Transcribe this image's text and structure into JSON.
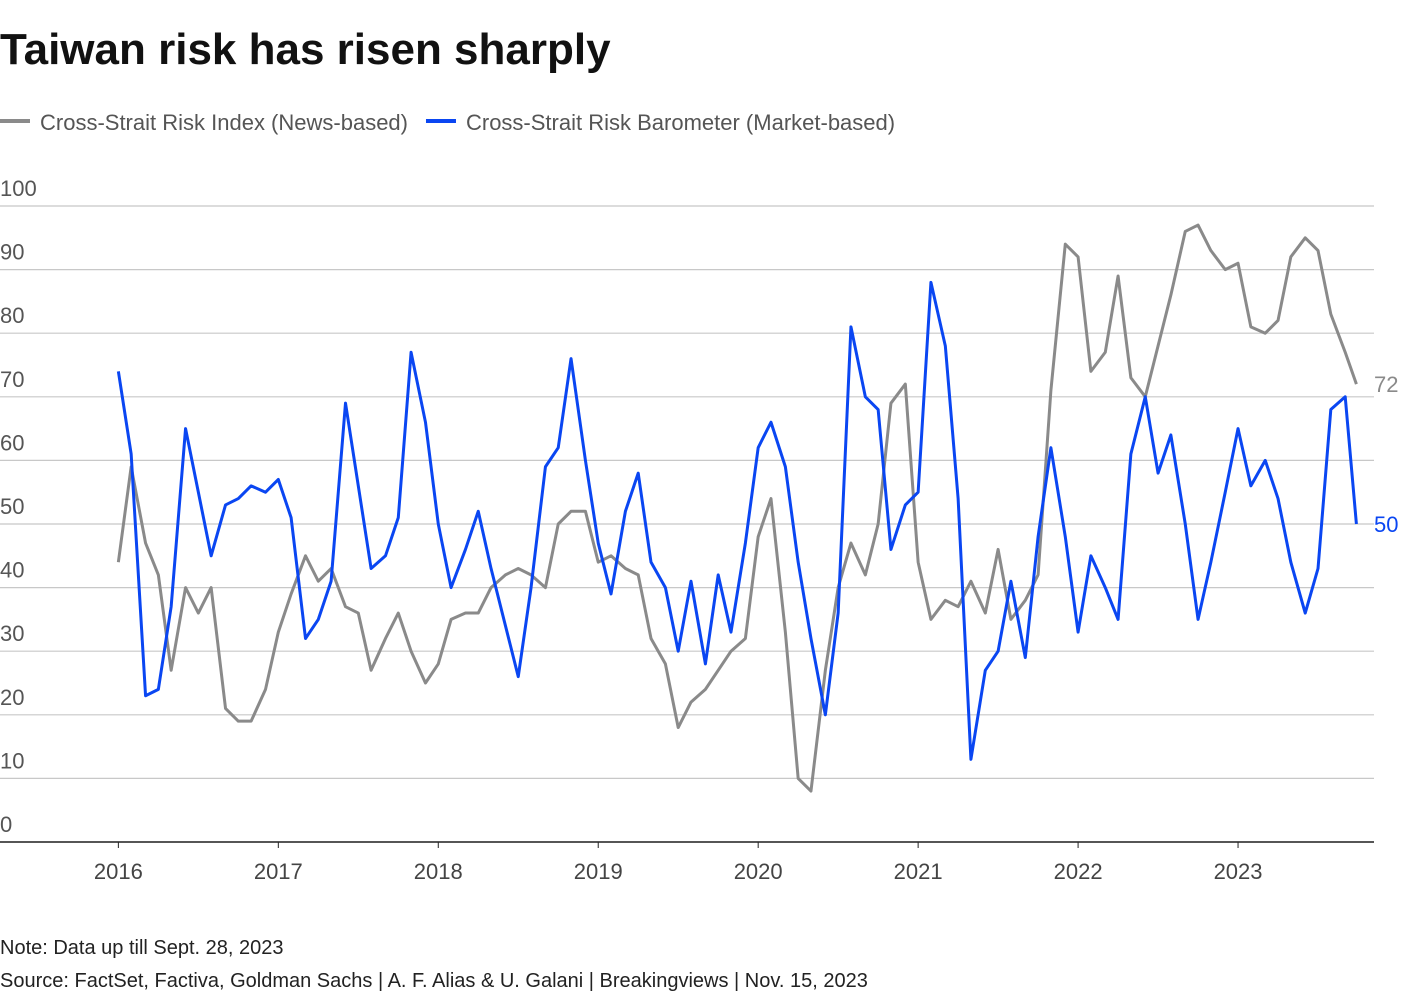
{
  "chart_data": {
    "type": "line",
    "title": "Taiwan risk has risen sharply",
    "note": "Note: Data up till Sept. 28, 2023",
    "source": "Source: FactSet, Factiva, Goldman Sachs | A. F. Alias & U. Galani | Breakingviews | Nov. 15, 2023",
    "x": [
      2016,
      2016.08,
      2016.17,
      2016.25,
      2016.33,
      2016.42,
      2016.5,
      2016.58,
      2016.67,
      2016.75,
      2016.83,
      2016.92,
      2017,
      2017.08,
      2017.17,
      2017.25,
      2017.33,
      2017.42,
      2017.5,
      2017.58,
      2017.67,
      2017.75,
      2017.83,
      2017.92,
      2018,
      2018.08,
      2018.17,
      2018.25,
      2018.33,
      2018.42,
      2018.5,
      2018.58,
      2018.67,
      2018.75,
      2018.83,
      2018.92,
      2019,
      2019.08,
      2019.17,
      2019.25,
      2019.33,
      2019.42,
      2019.5,
      2019.58,
      2019.67,
      2019.75,
      2019.83,
      2019.92,
      2020,
      2020.08,
      2020.17,
      2020.25,
      2020.33,
      2020.42,
      2020.5,
      2020.58,
      2020.67,
      2020.75,
      2020.83,
      2020.92,
      2021,
      2021.08,
      2021.17,
      2021.25,
      2021.33,
      2021.42,
      2021.5,
      2021.58,
      2021.67,
      2021.75,
      2021.83,
      2021.92,
      2022,
      2022.08,
      2022.17,
      2022.25,
      2022.33,
      2022.42,
      2022.5,
      2022.58,
      2022.67,
      2022.75,
      2022.83,
      2022.92,
      2023,
      2023.08,
      2023.17,
      2023.25,
      2023.33,
      2023.42,
      2023.5,
      2023.58,
      2023.67,
      2023.74
    ],
    "series": [
      {
        "name": "Cross-Strait Risk Index (News-based)",
        "color": "#8a8a8a",
        "values": [
          44,
          59,
          47,
          42,
          27,
          40,
          36,
          40,
          21,
          19,
          19,
          24,
          33,
          39,
          45,
          41,
          43,
          37,
          36,
          27,
          32,
          36,
          30,
          25,
          28,
          35,
          36,
          36,
          40,
          42,
          43,
          42,
          40,
          50,
          52,
          52,
          44,
          45,
          43,
          42,
          32,
          28,
          18,
          22,
          24,
          27,
          30,
          32,
          48,
          54,
          33,
          10,
          8,
          27,
          40,
          47,
          42,
          50,
          69,
          72,
          44,
          35,
          38,
          37,
          41,
          36,
          46,
          35,
          38,
          42,
          71,
          94,
          92,
          74,
          77,
          89,
          73,
          70,
          78,
          86,
          96,
          97,
          93,
          90,
          91,
          81,
          80,
          82,
          92,
          95,
          93,
          83,
          77,
          72
        ]
      },
      {
        "name": "Cross-Strait Risk Barometer (Market-based)",
        "color": "#0a46f2",
        "values": [
          74,
          61,
          23,
          24,
          37,
          65,
          55,
          45,
          53,
          54,
          56,
          55,
          57,
          51,
          32,
          35,
          41,
          69,
          56,
          43,
          45,
          51,
          77,
          66,
          50,
          40,
          46,
          52,
          43,
          34,
          26,
          40,
          59,
          62,
          76,
          60,
          47,
          39,
          52,
          58,
          44,
          40,
          30,
          41,
          28,
          42,
          33,
          47,
          62,
          66,
          59,
          44,
          32,
          20,
          36,
          81,
          70,
          68,
          46,
          53,
          55,
          88,
          78,
          54,
          13,
          27,
          30,
          41,
          29,
          48,
          62,
          48,
          33,
          45,
          40,
          35,
          61,
          70,
          58,
          64,
          50,
          35,
          44,
          55,
          65,
          56,
          60,
          54,
          44,
          36,
          43,
          68,
          70,
          50
        ]
      }
    ],
    "xlim": [
      2015.26,
      2023.85
    ],
    "xticks": [
      2016,
      2017,
      2018,
      2019,
      2020,
      2021,
      2022,
      2023
    ],
    "ylim": [
      0,
      100
    ],
    "yticks": [
      0,
      10,
      20,
      30,
      40,
      50,
      60,
      70,
      80,
      90,
      100
    ],
    "grid": true
  }
}
